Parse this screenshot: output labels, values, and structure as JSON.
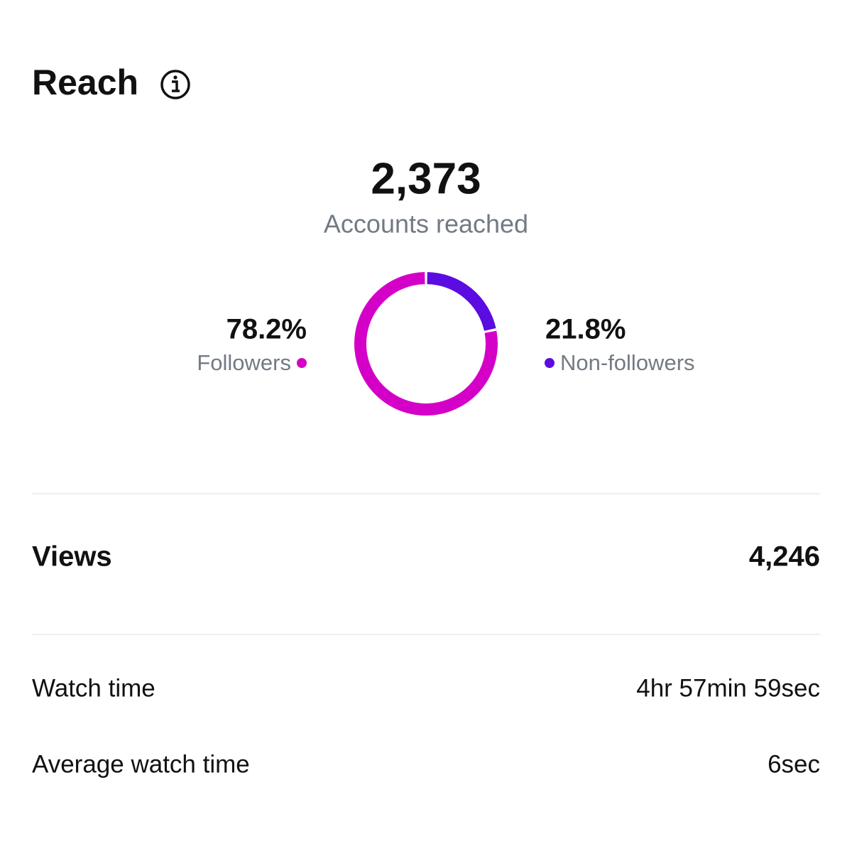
{
  "header": {
    "title": "Reach"
  },
  "summary": {
    "value": "2,373",
    "label": "Accounts reached"
  },
  "chart_data": {
    "type": "donut",
    "categories": [
      "Followers",
      "Non-followers"
    ],
    "values": [
      78.2,
      21.8
    ],
    "value_labels": [
      "78.2%",
      "21.8%"
    ],
    "colors": [
      "#d400c8",
      "#5b0ce0"
    ]
  },
  "metrics": [
    {
      "label": "Views",
      "value": "4,246"
    },
    {
      "label": "Watch time",
      "value": "4hr 57min 59sec"
    },
    {
      "label": "Average watch time",
      "value": "6sec"
    }
  ]
}
